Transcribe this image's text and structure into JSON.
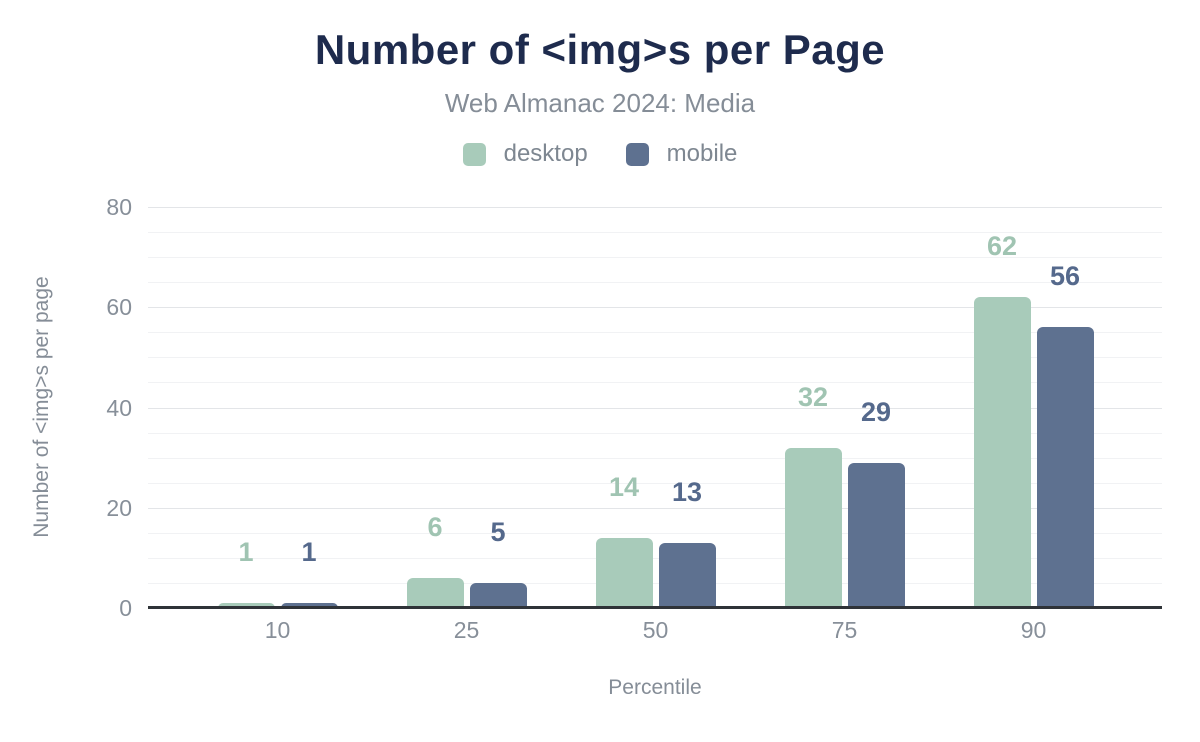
{
  "header": {
    "title": "Number of <img>s per Page",
    "subtitle": "Web Almanac 2024: Media"
  },
  "chart_data": {
    "type": "bar",
    "categories": [
      "10",
      "25",
      "50",
      "75",
      "90"
    ],
    "series": [
      {
        "name": "desktop",
        "values": [
          1,
          6,
          14,
          32,
          62
        ],
        "color": "#a8cbba",
        "label_color": "#a0c4b2"
      },
      {
        "name": "mobile",
        "values": [
          1,
          5,
          13,
          29,
          56
        ],
        "color": "#5e7190",
        "label_color": "#55698c"
      }
    ],
    "title": "Number of <img>s per Page",
    "subtitle": "Web Almanac 2024: Media",
    "xlabel": "Percentile",
    "ylabel": "Number of <img>s per page",
    "ylim": [
      0,
      80
    ],
    "y_ticks": [
      0,
      20,
      40,
      60,
      80
    ],
    "minor_grid_step": 5,
    "grid": true,
    "legend_position": "top"
  },
  "palette": {
    "background": "#ffffff",
    "title_color": "#1e2b4d",
    "subtitle_color": "#858d97",
    "axis_text_color": "#878f99",
    "axis_line_color": "#2f3338",
    "grid_major_color": "#e3e5e8",
    "grid_minor_color": "#f1f2f4"
  }
}
